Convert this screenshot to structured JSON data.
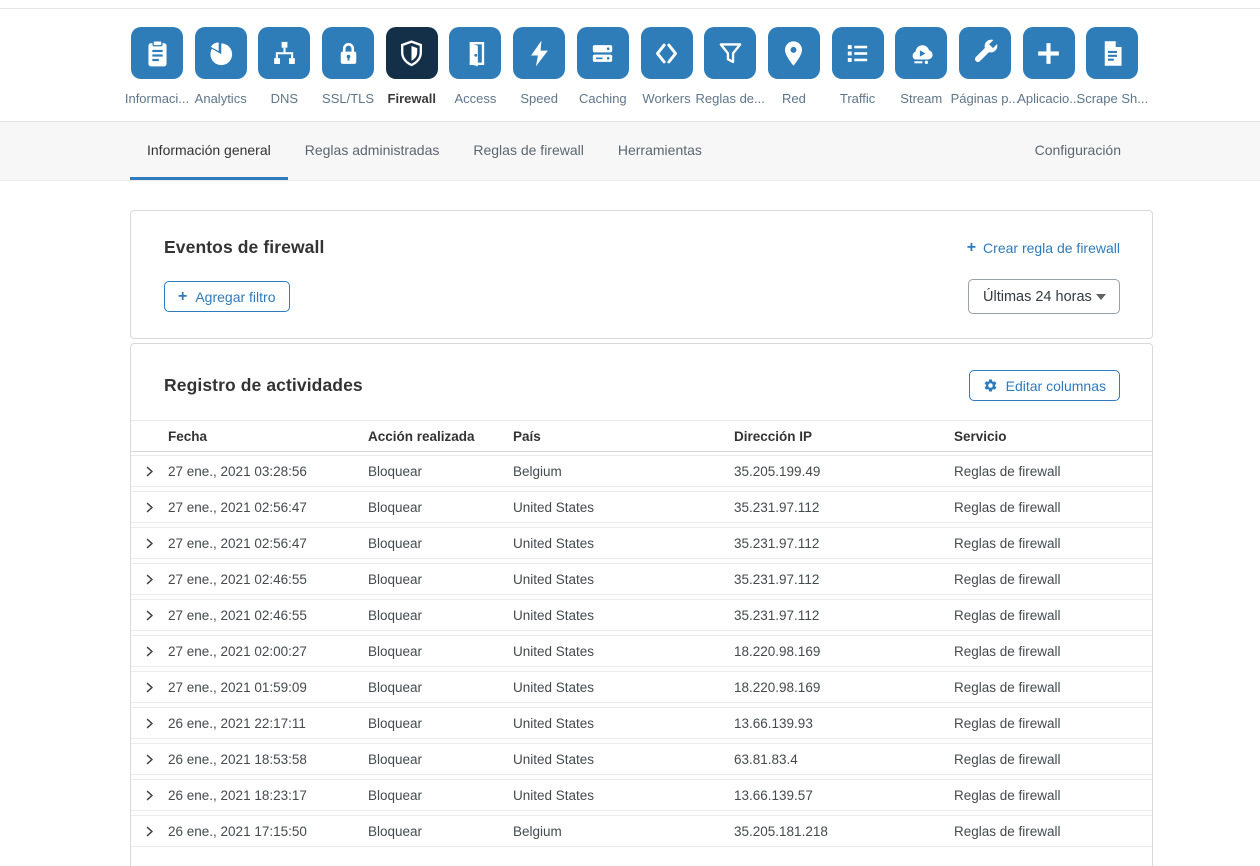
{
  "nav": {
    "items": [
      {
        "key": "overview",
        "label": "Informaci...",
        "icon": "clipboard-icon",
        "active": false
      },
      {
        "key": "analytics",
        "label": "Analytics",
        "icon": "pie-chart-icon",
        "active": false
      },
      {
        "key": "dns",
        "label": "DNS",
        "icon": "network-tree-icon",
        "active": false
      },
      {
        "key": "ssl-tls",
        "label": "SSL/TLS",
        "icon": "padlock-icon",
        "active": false
      },
      {
        "key": "firewall",
        "label": "Firewall",
        "icon": "shield-icon",
        "active": true
      },
      {
        "key": "access",
        "label": "Access",
        "icon": "door-icon",
        "active": false
      },
      {
        "key": "speed",
        "label": "Speed",
        "icon": "lightning-icon",
        "active": false
      },
      {
        "key": "caching",
        "label": "Caching",
        "icon": "server-stack-icon",
        "active": false
      },
      {
        "key": "workers",
        "label": "Workers",
        "icon": "angle-brackets-icon",
        "active": false
      },
      {
        "key": "page-rules",
        "label": "Reglas de...",
        "icon": "funnel-icon",
        "active": false
      },
      {
        "key": "network",
        "label": "Red",
        "icon": "map-pin-icon",
        "active": false
      },
      {
        "key": "traffic",
        "label": "Traffic",
        "icon": "list-icon",
        "active": false
      },
      {
        "key": "stream",
        "label": "Stream",
        "icon": "cloud-play-icon",
        "active": false
      },
      {
        "key": "custom-pages",
        "label": "Páginas p...",
        "icon": "wrench-icon",
        "active": false
      },
      {
        "key": "apps",
        "label": "Aplicacio...",
        "icon": "plus-icon",
        "active": false
      },
      {
        "key": "scrape-shield",
        "label": "Scrape Sh...",
        "icon": "document-icon",
        "active": false
      }
    ]
  },
  "tabs": {
    "items": [
      {
        "key": "informacion-general",
        "label": "Información general",
        "active": true
      },
      {
        "key": "reglas-administradas",
        "label": "Reglas administradas",
        "active": false
      },
      {
        "key": "reglas-de-firewall",
        "label": "Reglas de firewall",
        "active": false
      },
      {
        "key": "herramientas",
        "label": "Herramientas",
        "active": false
      }
    ],
    "right_item": "Configuración"
  },
  "firewall_events": {
    "title": "Eventos de firewall",
    "create_rule_label": "Crear regla de firewall",
    "create_rule_plus": "+",
    "add_filter_label": "Agregar filtro",
    "add_filter_plus": "+",
    "time_range": "Últimas 24 horas"
  },
  "activity_log": {
    "title": "Registro de actividades",
    "edit_columns_label": "Editar columnas",
    "columns": [
      "Fecha",
      "Acción realizada",
      "País",
      "Dirección IP",
      "Servicio"
    ],
    "rows": [
      {
        "fecha": "27 ene., 2021 03:28:56",
        "accion": "Bloquear",
        "pais": "Belgium",
        "ip": "35.205.199.49",
        "servicio": "Reglas de firewall"
      },
      {
        "fecha": "27 ene., 2021 02:56:47",
        "accion": "Bloquear",
        "pais": "United States",
        "ip": "35.231.97.112",
        "servicio": "Reglas de firewall"
      },
      {
        "fecha": "27 ene., 2021 02:56:47",
        "accion": "Bloquear",
        "pais": "United States",
        "ip": "35.231.97.112",
        "servicio": "Reglas de firewall"
      },
      {
        "fecha": "27 ene., 2021 02:46:55",
        "accion": "Bloquear",
        "pais": "United States",
        "ip": "35.231.97.112",
        "servicio": "Reglas de firewall"
      },
      {
        "fecha": "27 ene., 2021 02:46:55",
        "accion": "Bloquear",
        "pais": "United States",
        "ip": "35.231.97.112",
        "servicio": "Reglas de firewall"
      },
      {
        "fecha": "27 ene., 2021 02:00:27",
        "accion": "Bloquear",
        "pais": "United States",
        "ip": "18.220.98.169",
        "servicio": "Reglas de firewall"
      },
      {
        "fecha": "27 ene., 2021 01:59:09",
        "accion": "Bloquear",
        "pais": "United States",
        "ip": "18.220.98.169",
        "servicio": "Reglas de firewall"
      },
      {
        "fecha": "26 ene., 2021 22:17:11",
        "accion": "Bloquear",
        "pais": "United States",
        "ip": "13.66.139.93",
        "servicio": "Reglas de firewall"
      },
      {
        "fecha": "26 ene., 2021 18:53:58",
        "accion": "Bloquear",
        "pais": "United States",
        "ip": "63.81.83.4",
        "servicio": "Reglas de firewall"
      },
      {
        "fecha": "26 ene., 2021 18:23:17",
        "accion": "Bloquear",
        "pais": "United States",
        "ip": "13.66.139.57",
        "servicio": "Reglas de firewall"
      },
      {
        "fecha": "26 ene., 2021 17:15:50",
        "accion": "Bloquear",
        "pais": "Belgium",
        "ip": "35.205.181.218",
        "servicio": "Reglas de firewall"
      }
    ]
  },
  "colors": {
    "accent": "#2e7bbd",
    "tile": "#2e7cb8",
    "tile_active": "#143049"
  }
}
